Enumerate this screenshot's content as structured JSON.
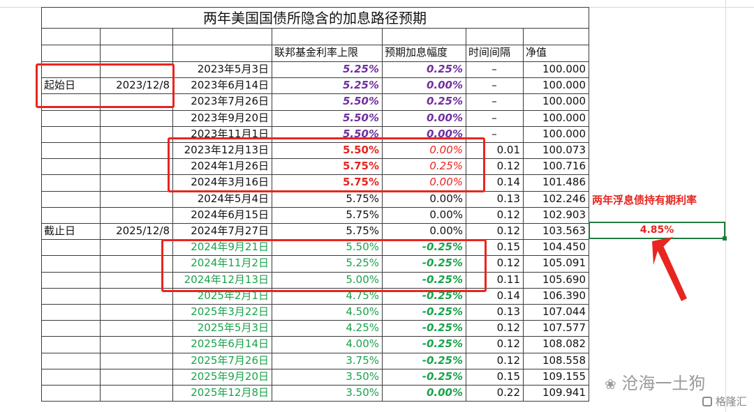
{
  "title": "两年美国国债所隐含的加息路径预期",
  "headers": {
    "rate_cap": "联邦基金利率上限",
    "hike": "预期加息幅度",
    "interval": "时间间隔",
    "nav": "净值"
  },
  "start": {
    "label": "起始日",
    "date": "2023/12/8"
  },
  "end": {
    "label": "截止日",
    "date": "2025/12/8"
  },
  "colors": {
    "purple": "#7030a0",
    "red": "#e8251f",
    "green": "#1aa34a",
    "black": "#111111"
  },
  "rows": [
    {
      "date": "2023年5月3日",
      "rate": "5.25%",
      "hike": "0.25%",
      "interval": "–",
      "nav": "100.000",
      "style": "purple"
    },
    {
      "date": "2023年6月14日",
      "rate": "5.25%",
      "hike": "0.00%",
      "interval": "–",
      "nav": "100.000",
      "style": "purple"
    },
    {
      "date": "2023年7月26日",
      "rate": "5.50%",
      "hike": "0.25%",
      "interval": "–",
      "nav": "100.000",
      "style": "purple"
    },
    {
      "date": "2023年9月20日",
      "rate": "5.50%",
      "hike": "0.00%",
      "interval": "–",
      "nav": "100.000",
      "style": "purple"
    },
    {
      "date": "2023年11月1日",
      "rate": "5.50%",
      "hike": "0.00%",
      "interval": "–",
      "nav": "100.000",
      "style": "purple"
    },
    {
      "date": "2023年12月13日",
      "rate": "5.50%",
      "hike": "0.00%",
      "interval": "0.01",
      "nav": "100.073",
      "style": "red"
    },
    {
      "date": "2024年1月26日",
      "rate": "5.75%",
      "hike": "0.25%",
      "interval": "0.12",
      "nav": "100.716",
      "style": "red"
    },
    {
      "date": "2024年3月16日",
      "rate": "5.75%",
      "hike": "0.00%",
      "interval": "0.14",
      "nav": "101.486",
      "style": "red"
    },
    {
      "date": "2024年5月4日",
      "rate": "5.75%",
      "hike": "0.00%",
      "interval": "0.13",
      "nav": "102.246",
      "style": "black"
    },
    {
      "date": "2024年6月15日",
      "rate": "5.75%",
      "hike": "0.00%",
      "interval": "0.12",
      "nav": "102.903",
      "style": "black"
    },
    {
      "date": "2024年7月27日",
      "rate": "5.75%",
      "hike": "0.00%",
      "interval": "0.12",
      "nav": "103.563",
      "style": "black"
    },
    {
      "date": "2024年9月21日",
      "rate": "5.50%",
      "hike": "-0.25%",
      "interval": "0.15",
      "nav": "104.450",
      "style": "green"
    },
    {
      "date": "2024年11月2日",
      "rate": "5.25%",
      "hike": "-0.25%",
      "interval": "0.12",
      "nav": "105.091",
      "style": "green"
    },
    {
      "date": "2024年12月13日",
      "rate": "5.00%",
      "hike": "-0.25%",
      "interval": "0.11",
      "nav": "105.690",
      "style": "green"
    },
    {
      "date": "2025年2月1日",
      "rate": "4.75%",
      "hike": "-0.25%",
      "interval": "0.14",
      "nav": "106.390",
      "style": "green"
    },
    {
      "date": "2025年3月22日",
      "rate": "4.50%",
      "hike": "-0.25%",
      "interval": "0.13",
      "nav": "107.044",
      "style": "green"
    },
    {
      "date": "2025年5月3日",
      "rate": "4.25%",
      "hike": "-0.25%",
      "interval": "0.12",
      "nav": "107.577",
      "style": "green"
    },
    {
      "date": "2025年6月14日",
      "rate": "4.00%",
      "hike": "-0.25%",
      "interval": "0.12",
      "nav": "108.082",
      "style": "green"
    },
    {
      "date": "2025年7月26日",
      "rate": "3.75%",
      "hike": "-0.25%",
      "interval": "0.12",
      "nav": "108.558",
      "style": "green"
    },
    {
      "date": "2025年9月20日",
      "rate": "3.50%",
      "hike": "-0.25%",
      "interval": "0.15",
      "nav": "109.155",
      "style": "green"
    },
    {
      "date": "2025年12月8日",
      "rate": "3.50%",
      "hike": "0.00%",
      "interval": "0.22",
      "nav": "109.941",
      "style": "green"
    }
  ],
  "side": {
    "label": "两年浮息债持有期利率",
    "value": "4.85%"
  },
  "watermark": {
    "wechat": "沧海一土狗",
    "brand": "格隆汇"
  }
}
